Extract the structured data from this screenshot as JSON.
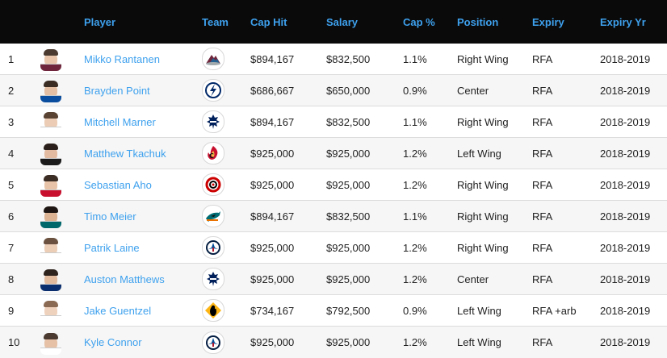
{
  "table": {
    "headers": {
      "rank": "",
      "photo": "",
      "player": "Player",
      "team": "Team",
      "cap_hit": "Cap Hit",
      "salary": "Salary",
      "cap_pct": "Cap %",
      "position": "Position",
      "expiry": "Expiry",
      "expiry_yr": "Expiry Yr"
    },
    "rows": [
      {
        "rank": "1",
        "player": "Mikko Rantanen",
        "team_logo": "colorado-avalanche-logo",
        "cap_hit": "$894,167",
        "salary": "$832,500",
        "cap_pct": "1.1%",
        "position": "Right Wing",
        "expiry": "RFA",
        "expiry_yr": "2018-2019"
      },
      {
        "rank": "2",
        "player": "Brayden Point",
        "team_logo": "tampa-bay-lightning-logo",
        "cap_hit": "$686,667",
        "salary": "$650,000",
        "cap_pct": "0.9%",
        "position": "Center",
        "expiry": "RFA",
        "expiry_yr": "2018-2019"
      },
      {
        "rank": "3",
        "player": "Mitchell Marner",
        "team_logo": "toronto-maple-leafs-logo",
        "cap_hit": "$894,167",
        "salary": "$832,500",
        "cap_pct": "1.1%",
        "position": "Right Wing",
        "expiry": "RFA",
        "expiry_yr": "2018-2019"
      },
      {
        "rank": "4",
        "player": "Matthew Tkachuk",
        "team_logo": "calgary-flames-logo",
        "cap_hit": "$925,000",
        "salary": "$925,000",
        "cap_pct": "1.2%",
        "position": "Left Wing",
        "expiry": "RFA",
        "expiry_yr": "2018-2019"
      },
      {
        "rank": "5",
        "player": "Sebastian Aho",
        "team_logo": "carolina-hurricanes-logo",
        "cap_hit": "$925,000",
        "salary": "$925,000",
        "cap_pct": "1.2%",
        "position": "Right Wing",
        "expiry": "RFA",
        "expiry_yr": "2018-2019"
      },
      {
        "rank": "6",
        "player": "Timo Meier",
        "team_logo": "san-jose-sharks-logo",
        "cap_hit": "$894,167",
        "salary": "$832,500",
        "cap_pct": "1.1%",
        "position": "Right Wing",
        "expiry": "RFA",
        "expiry_yr": "2018-2019"
      },
      {
        "rank": "7",
        "player": "Patrik Laine",
        "team_logo": "winnipeg-jets-logo",
        "cap_hit": "$925,000",
        "salary": "$925,000",
        "cap_pct": "1.2%",
        "position": "Right Wing",
        "expiry": "RFA",
        "expiry_yr": "2018-2019"
      },
      {
        "rank": "8",
        "player": "Auston Matthews",
        "team_logo": "toronto-maple-leafs-logo",
        "cap_hit": "$925,000",
        "salary": "$925,000",
        "cap_pct": "1.2%",
        "position": "Center",
        "expiry": "RFA",
        "expiry_yr": "2018-2019"
      },
      {
        "rank": "9",
        "player": "Jake Guentzel",
        "team_logo": "pittsburgh-penguins-logo",
        "cap_hit": "$734,167",
        "salary": "$792,500",
        "cap_pct": "0.9%",
        "position": "Left Wing",
        "expiry": "RFA +arb",
        "expiry_yr": "2018-2019"
      },
      {
        "rank": "10",
        "player": "Kyle Connor",
        "team_logo": "winnipeg-jets-logo",
        "cap_hit": "$925,000",
        "salary": "$925,000",
        "cap_pct": "1.2%",
        "position": "Left Wing",
        "expiry": "RFA",
        "expiry_yr": "2018-2019"
      }
    ]
  },
  "colors": {
    "header_bg": "#0a0a0a",
    "accent": "#3ea1ee",
    "row_alt": "#f6f6f6",
    "divider": "#dcdcdc"
  }
}
